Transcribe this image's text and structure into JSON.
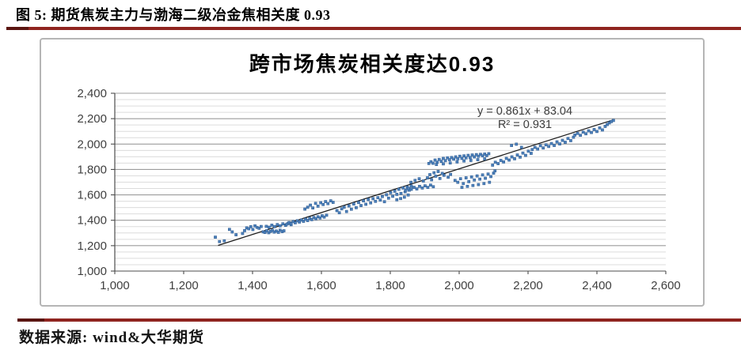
{
  "header": {
    "caption": "图 5: 期货焦炭主力与渤海二级冶金焦相关度 0.93"
  },
  "footer": {
    "source": "数据来源: wind&大华期货"
  },
  "theme": {
    "accent_rule_color": "#8f241f",
    "accent_rule_cap_color": "#5a1511",
    "chart_border_color": "#b5b5b5",
    "point_fill": "#4c80ba",
    "point_stroke": "#2d5a90",
    "trendline_color": "#1a1a1a",
    "grid_minor_color": "#dcdcdc",
    "grid_major_color": "#9c9c9c",
    "axis_color": "#4d4d4d",
    "tick_label_color": "#3f3f3f"
  },
  "chart_data": {
    "type": "scatter",
    "title": "跨市场焦炭相关度达0.93",
    "xlabel": "",
    "ylabel": "",
    "xlim": [
      1000,
      2600
    ],
    "ylim": [
      1000,
      2400
    ],
    "x_ticks": [
      1000,
      1200,
      1400,
      1600,
      1800,
      2000,
      2200,
      2400,
      2600
    ],
    "x_tick_labels": [
      "1,000",
      "1,200",
      "1,400",
      "1,600",
      "1,800",
      "2,000",
      "2,200",
      "2,400",
      "2,600"
    ],
    "y_ticks": [
      1000,
      1200,
      1400,
      1600,
      1800,
      2000,
      2200,
      2400
    ],
    "y_tick_labels": [
      "1,000",
      "1,200",
      "1,400",
      "1,600",
      "1,800",
      "2,000",
      "2,200",
      "2,400"
    ],
    "y_minor_step": 50,
    "grid": "horizontal-only",
    "legend": "none",
    "trendline": {
      "slope": 0.861,
      "intercept": 83.04,
      "x_start": 1300,
      "x_end": 2448,
      "equation_label": "y = 0.861x + 83.04",
      "r2_label": "R² = 0.931"
    },
    "points": [
      [
        1292,
        1267
      ],
      [
        1304,
        1232
      ],
      [
        1318,
        1238
      ],
      [
        1333,
        1328
      ],
      [
        1341,
        1308
      ],
      [
        1352,
        1286
      ],
      [
        1371,
        1296
      ],
      [
        1377,
        1318
      ],
      [
        1383,
        1340
      ],
      [
        1389,
        1333
      ],
      [
        1395,
        1349
      ],
      [
        1401,
        1327
      ],
      [
        1407,
        1356
      ],
      [
        1413,
        1344
      ],
      [
        1419,
        1337
      ],
      [
        1425,
        1351
      ],
      [
        1431,
        1309
      ],
      [
        1436,
        1304
      ],
      [
        1441,
        1317
      ],
      [
        1447,
        1302
      ],
      [
        1452,
        1312
      ],
      [
        1458,
        1320
      ],
      [
        1463,
        1307
      ],
      [
        1469,
        1315
      ],
      [
        1475,
        1305
      ],
      [
        1480,
        1322
      ],
      [
        1486,
        1311
      ],
      [
        1491,
        1317
      ],
      [
        1440,
        1352
      ],
      [
        1448,
        1345
      ],
      [
        1456,
        1361
      ],
      [
        1464,
        1350
      ],
      [
        1472,
        1366
      ],
      [
        1480,
        1356
      ],
      [
        1488,
        1372
      ],
      [
        1496,
        1360
      ],
      [
        1504,
        1375
      ],
      [
        1512,
        1365
      ],
      [
        1500,
        1370
      ],
      [
        1506,
        1382
      ],
      [
        1512,
        1375
      ],
      [
        1518,
        1390
      ],
      [
        1524,
        1380
      ],
      [
        1530,
        1396
      ],
      [
        1536,
        1386
      ],
      [
        1542,
        1402
      ],
      [
        1548,
        1392
      ],
      [
        1554,
        1408
      ],
      [
        1560,
        1398
      ],
      [
        1566,
        1415
      ],
      [
        1572,
        1405
      ],
      [
        1578,
        1422
      ],
      [
        1584,
        1412
      ],
      [
        1590,
        1428
      ],
      [
        1596,
        1418
      ],
      [
        1602,
        1435
      ],
      [
        1608,
        1425
      ],
      [
        1615,
        1440
      ],
      [
        1552,
        1488
      ],
      [
        1560,
        1503
      ],
      [
        1568,
        1519
      ],
      [
        1575,
        1497
      ],
      [
        1583,
        1533
      ],
      [
        1590,
        1511
      ],
      [
        1598,
        1538
      ],
      [
        1605,
        1524
      ],
      [
        1612,
        1547
      ],
      [
        1619,
        1531
      ],
      [
        1627,
        1553
      ],
      [
        1634,
        1541
      ],
      [
        1645,
        1476
      ],
      [
        1652,
        1459
      ],
      [
        1659,
        1490
      ],
      [
        1666,
        1503
      ],
      [
        1673,
        1469
      ],
      [
        1680,
        1513
      ],
      [
        1687,
        1487
      ],
      [
        1694,
        1528
      ],
      [
        1701,
        1499
      ],
      [
        1708,
        1540
      ],
      [
        1715,
        1516
      ],
      [
        1722,
        1553
      ],
      [
        1729,
        1526
      ],
      [
        1736,
        1563
      ],
      [
        1743,
        1537
      ],
      [
        1750,
        1570
      ],
      [
        1757,
        1549
      ],
      [
        1764,
        1578
      ],
      [
        1771,
        1559
      ],
      [
        1777,
        1587
      ],
      [
        1783,
        1546
      ],
      [
        1789,
        1601
      ],
      [
        1795,
        1574
      ],
      [
        1801,
        1617
      ],
      [
        1807,
        1589
      ],
      [
        1813,
        1629
      ],
      [
        1819,
        1604
      ],
      [
        1825,
        1644
      ],
      [
        1831,
        1611
      ],
      [
        1837,
        1654
      ],
      [
        1843,
        1624
      ],
      [
        1849,
        1661
      ],
      [
        1855,
        1637
      ],
      [
        1861,
        1669
      ],
      [
        1852,
        1599
      ],
      [
        1841,
        1582
      ],
      [
        1830,
        1571
      ],
      [
        1819,
        1561
      ],
      [
        1845,
        1637
      ],
      [
        1853,
        1651
      ],
      [
        1861,
        1644
      ],
      [
        1869,
        1659
      ],
      [
        1877,
        1647
      ],
      [
        1885,
        1667
      ],
      [
        1893,
        1654
      ],
      [
        1901,
        1671
      ],
      [
        1909,
        1659
      ],
      [
        1917,
        1677
      ],
      [
        1925,
        1664
      ],
      [
        1860,
        1699
      ],
      [
        1872,
        1714
      ],
      [
        1884,
        1727
      ],
      [
        1896,
        1709
      ],
      [
        1908,
        1734
      ],
      [
        1920,
        1719
      ],
      [
        1932,
        1747
      ],
      [
        1944,
        1729
      ],
      [
        1956,
        1754
      ],
      [
        1968,
        1739
      ],
      [
        1975,
        1761
      ],
      [
        1951,
        1769
      ],
      [
        1939,
        1784
      ],
      [
        1927,
        1774
      ],
      [
        1915,
        1759
      ],
      [
        1912,
        1847
      ],
      [
        1918,
        1861
      ],
      [
        1924,
        1849
      ],
      [
        1930,
        1874
      ],
      [
        1936,
        1857
      ],
      [
        1942,
        1879
      ],
      [
        1948,
        1864
      ],
      [
        1954,
        1887
      ],
      [
        1960,
        1869
      ],
      [
        1966,
        1891
      ],
      [
        1972,
        1877
      ],
      [
        1978,
        1894
      ],
      [
        1984,
        1881
      ],
      [
        1990,
        1899
      ],
      [
        1996,
        1884
      ],
      [
        2002,
        1904
      ],
      [
        2008,
        1887
      ],
      [
        2014,
        1907
      ],
      [
        2020,
        1891
      ],
      [
        2026,
        1911
      ],
      [
        2032,
        1894
      ],
      [
        2038,
        1914
      ],
      [
        2044,
        1899
      ],
      [
        2050,
        1917
      ],
      [
        2056,
        1904
      ],
      [
        2062,
        1919
      ],
      [
        2068,
        1907
      ],
      [
        2074,
        1921
      ],
      [
        2080,
        1909
      ],
      [
        2086,
        1924
      ],
      [
        1934,
        1839
      ],
      [
        1954,
        1844
      ],
      [
        1974,
        1851
      ],
      [
        1994,
        1859
      ],
      [
        2014,
        1867
      ],
      [
        2034,
        1871
      ],
      [
        2054,
        1877
      ],
      [
        2074,
        1883
      ],
      [
        1988,
        1714
      ],
      [
        1996,
        1699
      ],
      [
        2004,
        1727
      ],
      [
        2012,
        1689
      ],
      [
        2020,
        1734
      ],
      [
        2028,
        1704
      ],
      [
        2036,
        1741
      ],
      [
        2044,
        1717
      ],
      [
        2052,
        1749
      ],
      [
        2060,
        1724
      ],
      [
        2068,
        1757
      ],
      [
        2076,
        1731
      ],
      [
        2084,
        1764
      ],
      [
        2092,
        1744
      ],
      [
        2100,
        1771
      ],
      [
        2008,
        1659
      ],
      [
        2024,
        1667
      ],
      [
        2040,
        1674
      ],
      [
        2056,
        1681
      ],
      [
        2072,
        1689
      ],
      [
        2088,
        1699
      ],
      [
        2104,
        1789
      ],
      [
        2097,
        1834
      ],
      [
        2105,
        1857
      ],
      [
        2113,
        1846
      ],
      [
        2121,
        1871
      ],
      [
        2129,
        1859
      ],
      [
        2137,
        1887
      ],
      [
        2145,
        1874
      ],
      [
        2153,
        1899
      ],
      [
        2161,
        1884
      ],
      [
        2169,
        1914
      ],
      [
        2177,
        1897
      ],
      [
        2185,
        1929
      ],
      [
        2193,
        1911
      ],
      [
        2201,
        1944
      ],
      [
        2209,
        1927
      ],
      [
        2152,
        1989
      ],
      [
        2166,
        1999
      ],
      [
        2181,
        1974
      ],
      [
        2212,
        1957
      ],
      [
        2220,
        1974
      ],
      [
        2228,
        1961
      ],
      [
        2236,
        1987
      ],
      [
        2244,
        1969
      ],
      [
        2252,
        1994
      ],
      [
        2260,
        1981
      ],
      [
        2268,
        2004
      ],
      [
        2276,
        1989
      ],
      [
        2284,
        2017
      ],
      [
        2292,
        2001
      ],
      [
        2300,
        2029
      ],
      [
        2308,
        2014
      ],
      [
        2316,
        2044
      ],
      [
        2324,
        2027
      ],
      [
        2332,
        2054
      ],
      [
        2336,
        2071
      ],
      [
        2344,
        2084
      ],
      [
        2352,
        2069
      ],
      [
        2360,
        2094
      ],
      [
        2368,
        2081
      ],
      [
        2376,
        2104
      ],
      [
        2384,
        2091
      ],
      [
        2392,
        2114
      ],
      [
        2400,
        2099
      ],
      [
        2408,
        2127
      ],
      [
        2416,
        2111
      ],
      [
        2424,
        2139
      ],
      [
        2430,
        2154
      ],
      [
        2436,
        2167
      ],
      [
        2442,
        2177
      ],
      [
        2448,
        2186
      ]
    ]
  }
}
